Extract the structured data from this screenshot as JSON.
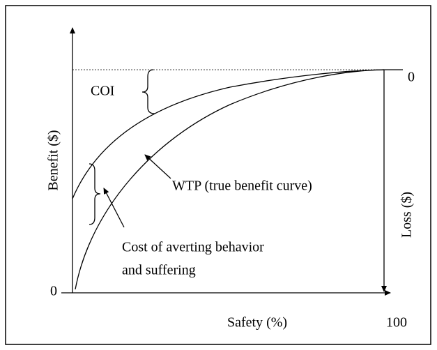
{
  "labels": {
    "y_axis": "Benefit ($)",
    "coi": "COI",
    "top_zero": "0",
    "wtp": "WTP (true benefit curve)",
    "loss_axis": "Loss ($)",
    "cost_line1": "Cost of averting behavior",
    "cost_line2": "and suffering",
    "origin_zero": "0",
    "x_axis": "Safety (%)",
    "x_max": "100"
  }
}
